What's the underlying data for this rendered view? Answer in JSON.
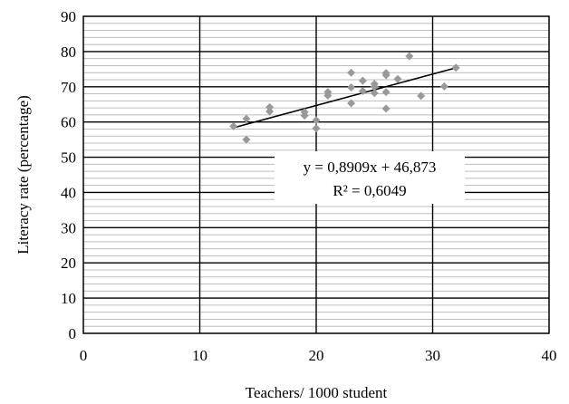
{
  "chart_data": {
    "type": "scatter",
    "xlabel": "Teachers/ 1000 student",
    "ylabel": "Literacy rate (percentage)",
    "xlim": [
      0,
      40
    ],
    "ylim": [
      0,
      90
    ],
    "x_ticks": [
      0,
      10,
      20,
      30,
      40
    ],
    "y_ticks": [
      0,
      10,
      20,
      30,
      40,
      50,
      60,
      70,
      80,
      90
    ],
    "major_grid": true,
    "minor_grid": true,
    "minor_grid_step": 2,
    "legend": "none",
    "marker": "diamond",
    "marker_color": "#999999",
    "trendline_color": "#000000",
    "points": [
      {
        "x": 12.9,
        "y": 58.8
      },
      {
        "x": 14.0,
        "y": 60.9
      },
      {
        "x": 14.0,
        "y": 55.0
      },
      {
        "x": 16.0,
        "y": 64.2
      },
      {
        "x": 16.0,
        "y": 63.0
      },
      {
        "x": 19.0,
        "y": 62.8
      },
      {
        "x": 19.0,
        "y": 61.8
      },
      {
        "x": 20.0,
        "y": 60.5
      },
      {
        "x": 20.0,
        "y": 58.2
      },
      {
        "x": 21.0,
        "y": 68.5
      },
      {
        "x": 21.0,
        "y": 67.5
      },
      {
        "x": 23.0,
        "y": 74.0
      },
      {
        "x": 23.0,
        "y": 69.8
      },
      {
        "x": 23.0,
        "y": 65.3
      },
      {
        "x": 24.0,
        "y": 71.7
      },
      {
        "x": 24.0,
        "y": 68.8
      },
      {
        "x": 25.0,
        "y": 70.8
      },
      {
        "x": 25.0,
        "y": 70.0
      },
      {
        "x": 25.0,
        "y": 68.2
      },
      {
        "x": 26.0,
        "y": 73.9
      },
      {
        "x": 26.0,
        "y": 73.3
      },
      {
        "x": 26.0,
        "y": 68.5
      },
      {
        "x": 26.0,
        "y": 63.8
      },
      {
        "x": 27.0,
        "y": 72.2
      },
      {
        "x": 28.0,
        "y": 78.7
      },
      {
        "x": 29.0,
        "y": 67.4
      },
      {
        "x": 31.0,
        "y": 70.1
      },
      {
        "x": 32.0,
        "y": 75.4
      }
    ],
    "trendline": {
      "slope": 0.8909,
      "intercept": 46.873,
      "x_range": [
        12.9,
        32.0
      ],
      "equation": "y = 0,8909x + 46,873",
      "r_squared": "R² = 0,6049"
    }
  }
}
